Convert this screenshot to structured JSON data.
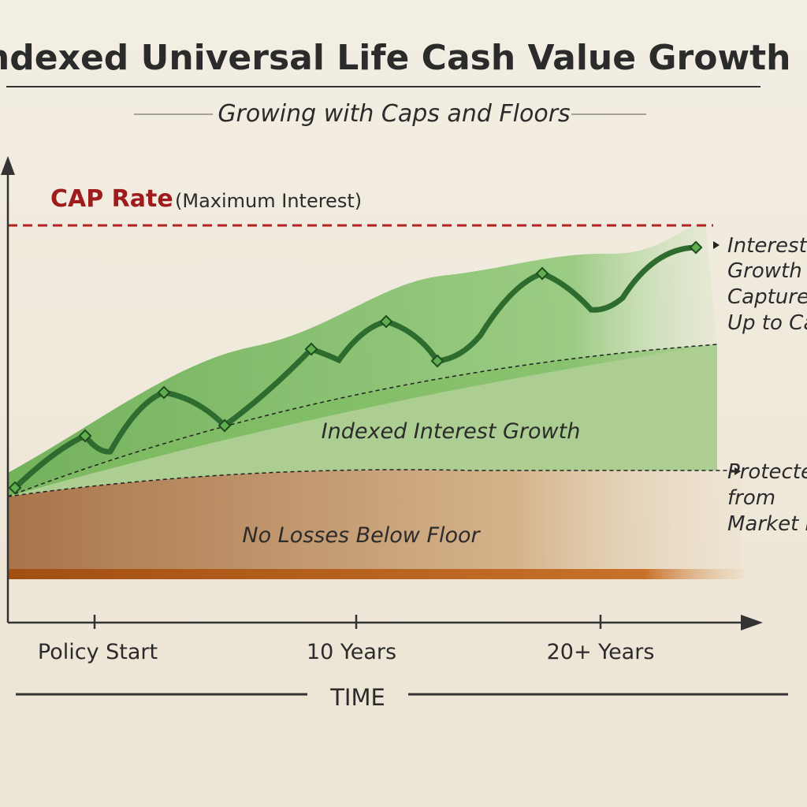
{
  "header": {
    "title": "Indexed Universal Life Cash Value Growth",
    "subtitle": "Growing with Caps and Floors"
  },
  "cap": {
    "label": "CAP Rate",
    "note": "(Maximum Interest)"
  },
  "regions": {
    "growth": "Indexed Interest Growth",
    "floor": "No Losses Below Floor"
  },
  "annotations": {
    "growth": [
      "Interest Growth",
      "Growth",
      "Captured",
      "Up to Cap"
    ],
    "floor": [
      "Protected",
      "from",
      "Market Loss"
    ]
  },
  "x_axis": {
    "labels": [
      "Policy Start",
      "10 Years",
      "20+ Years"
    ],
    "title": "TIME"
  }
}
